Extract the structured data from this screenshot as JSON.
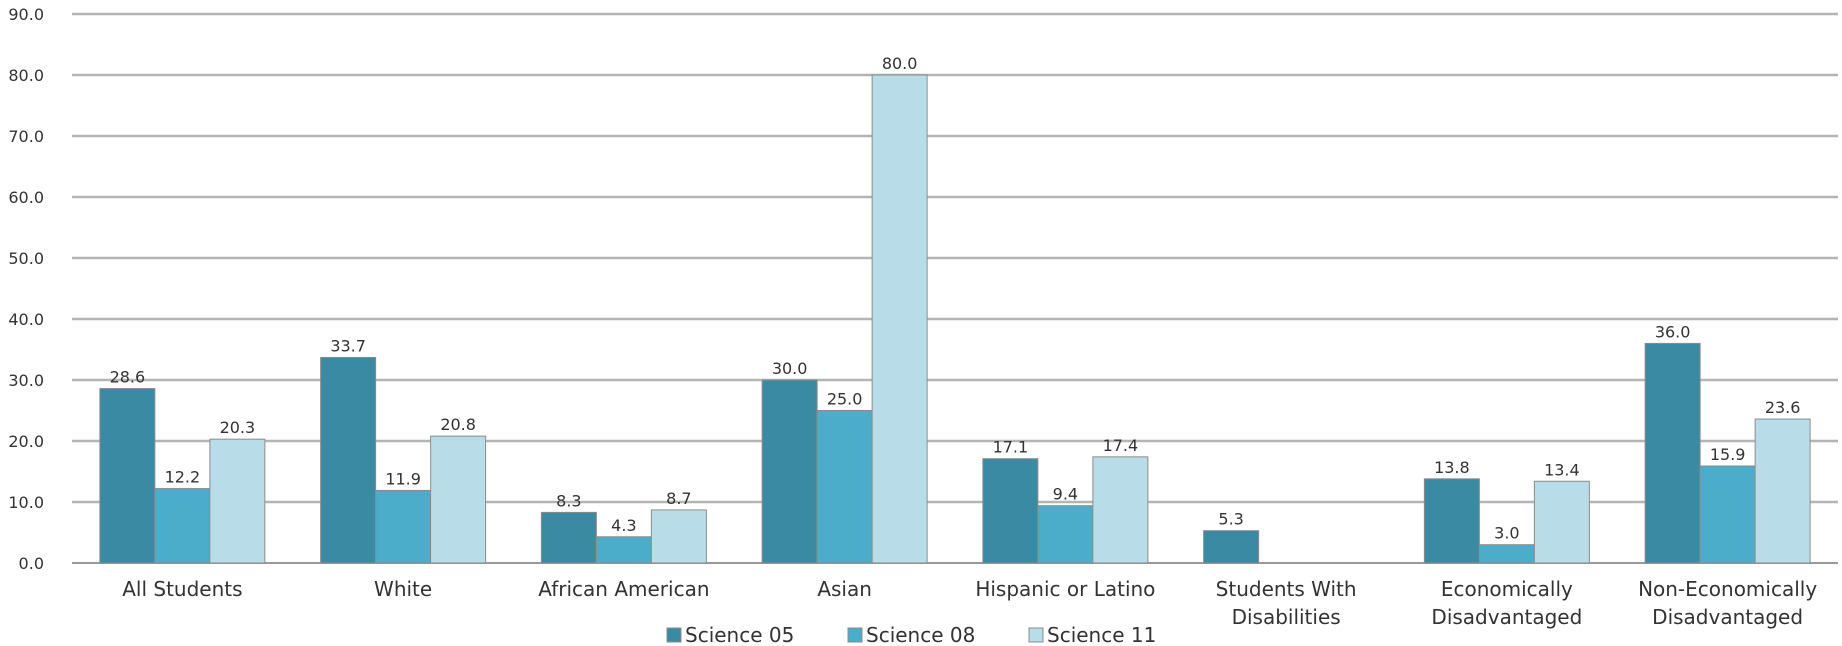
{
  "chart_data": {
    "type": "bar",
    "categories": [
      [
        "All Students"
      ],
      [
        "White"
      ],
      [
        "African American"
      ],
      [
        "Asian"
      ],
      [
        "Hispanic or Latino"
      ],
      [
        "Students With",
        "Disabilities"
      ],
      [
        "Economically",
        "Disadvantaged"
      ],
      [
        "Non-Economically",
        "Disadvantaged"
      ]
    ],
    "series": [
      {
        "name": "Science 05",
        "color": "#3a8aa3",
        "values": [
          28.6,
          33.7,
          8.3,
          30.0,
          17.1,
          5.3,
          13.8,
          36.0
        ]
      },
      {
        "name": "Science 08",
        "color": "#4badc9",
        "values": [
          12.2,
          11.9,
          4.3,
          25.0,
          9.4,
          null,
          3.0,
          15.9
        ]
      },
      {
        "name": "Science 11",
        "color": "#b9dde8",
        "values": [
          20.3,
          20.8,
          8.7,
          80.0,
          17.4,
          null,
          13.4,
          23.6
        ]
      }
    ],
    "ylim": [
      0,
      90
    ],
    "yticks": [
      "0.0",
      "10.0",
      "20.0",
      "30.0",
      "40.0",
      "50.0",
      "60.0",
      "70.0",
      "80.0",
      "90.0"
    ],
    "grid": true,
    "legend_position": "bottom",
    "title": "",
    "xlabel": "",
    "ylabel": ""
  }
}
